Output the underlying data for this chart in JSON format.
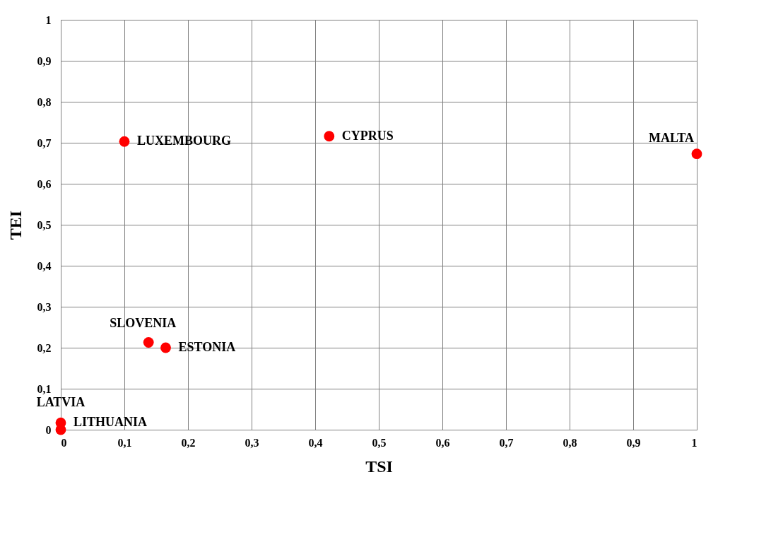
{
  "chart_data": {
    "type": "scatter",
    "xlabel": "TSI",
    "ylabel": "TEI",
    "x": [
      0.1,
      0.422,
      1.0,
      0.138,
      0.165,
      0.0,
      0.0
    ],
    "series": [
      {
        "color": "#ff0000",
        "values": [
          0.703,
          0.716,
          0.673,
          0.213,
          0.2,
          0.017,
          0.0
        ]
      }
    ],
    "annotations": [
      {
        "text": "LUXEMBOURG",
        "x": 0.1,
        "y": 0.703
      },
      {
        "text": "CYPRUS",
        "x": 0.422,
        "y": 0.716
      },
      {
        "text": "MALTA",
        "x": 1.0,
        "y": 0.673
      },
      {
        "text": "SLOVENIA",
        "x": 0.138,
        "y": 0.213
      },
      {
        "text": "ESTONIA",
        "x": 0.165,
        "y": 0.2
      },
      {
        "text": "LATVIA",
        "x": 0.0,
        "y": 0.017
      },
      {
        "text": "LITHUANIA",
        "x": 0.0,
        "y": 0.0
      }
    ],
    "xlim": [
      0,
      1
    ],
    "ylim": [
      0,
      1
    ],
    "xticks": [
      0,
      {
        "value": 0.1,
        "label": "0,1"
      },
      {
        "value": 0.2,
        "label": "0,2"
      },
      {
        "value": 0.3,
        "label": "0,3"
      },
      {
        "value": 0.4,
        "label": "0,4"
      },
      {
        "value": 0.5,
        "label": "0,5"
      },
      {
        "value": 0.6,
        "label": "0,6"
      },
      {
        "value": 0.7,
        "label": "0,7"
      },
      {
        "value": 0.8,
        "label": "0,8"
      },
      {
        "value": 0.9,
        "label": "0,9"
      },
      1
    ],
    "yticks": [
      0,
      {
        "value": 0.1,
        "label": "0,1"
      },
      {
        "value": 0.2,
        "label": "0,2"
      },
      {
        "value": 0.3,
        "label": "0,3"
      },
      {
        "value": 0.4,
        "label": "0,4"
      },
      {
        "value": 0.5,
        "label": "0,5"
      },
      {
        "value": 0.6,
        "label": "0,6"
      },
      {
        "value": 0.7,
        "label": "0,7"
      },
      {
        "value": 0.8,
        "label": "0,8"
      },
      {
        "value": 0.9,
        "label": "0,9"
      },
      1
    ],
    "grid": true,
    "marker": "circle"
  }
}
